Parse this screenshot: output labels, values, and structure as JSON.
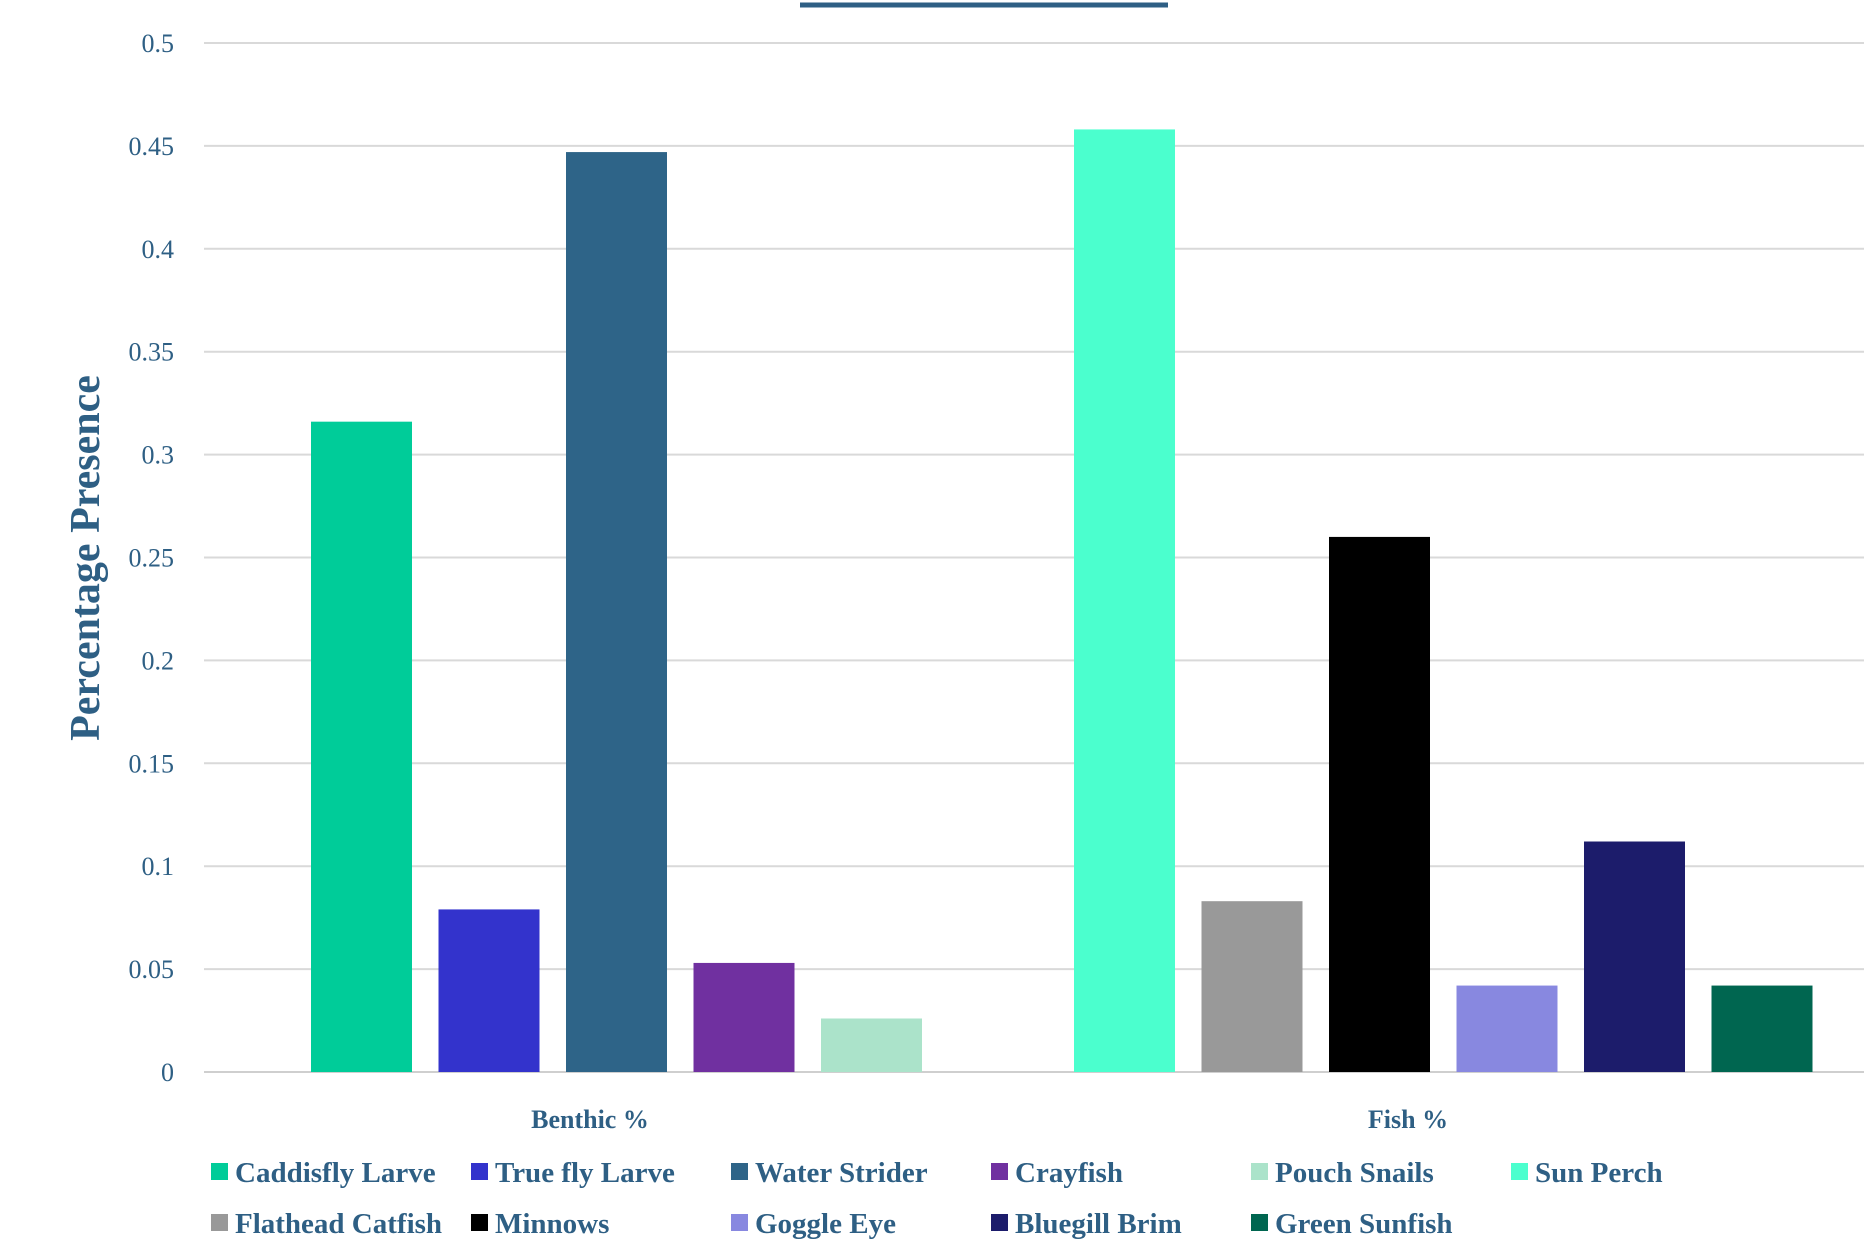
{
  "chart_data": {
    "type": "bar",
    "title": "",
    "xlabel": "",
    "ylabel": "Percentage Presence",
    "ylim": [
      0,
      0.5
    ],
    "yticks": [
      "0",
      "0.05",
      "0.1",
      "0.15",
      "0.2",
      "0.25",
      "0.3",
      "0.35",
      "0.4",
      "0.45",
      "0.5"
    ],
    "grid": true,
    "legend_position": "bottom",
    "categories": [
      "Benthic %",
      "Fish %"
    ],
    "series": [
      {
        "name": "Caddisfly Larve",
        "color": "#00CC99",
        "values": [
          0.316,
          null
        ]
      },
      {
        "name": "True fly Larve",
        "color": "#3333CC",
        "values": [
          0.079,
          null
        ]
      },
      {
        "name": "Water Strider",
        "color": "#2E6488",
        "values": [
          0.447,
          null
        ]
      },
      {
        "name": "Crayfish",
        "color": "#7030A0",
        "values": [
          0.053,
          null
        ]
      },
      {
        "name": "Pouch Snails",
        "color": "#ABE3CA",
        "values": [
          0.026,
          null
        ]
      },
      {
        "name": "Sun Perch",
        "color": "#4BFFCE",
        "values": [
          null,
          0.458
        ]
      },
      {
        "name": "Flathead Catfish",
        "color": "#999999",
        "values": [
          null,
          0.083
        ]
      },
      {
        "name": "Minnows",
        "color": "#000000",
        "values": [
          null,
          0.26
        ]
      },
      {
        "name": "Goggle Eye",
        "color": "#8888E0",
        "values": [
          null,
          0.042
        ]
      },
      {
        "name": "Bluegill Brim",
        "color": "#1C1C6B",
        "values": [
          null,
          0.112
        ]
      },
      {
        "name": "Green Sunfish",
        "color": "#006650",
        "values": [
          null,
          0.042
        ]
      }
    ]
  }
}
